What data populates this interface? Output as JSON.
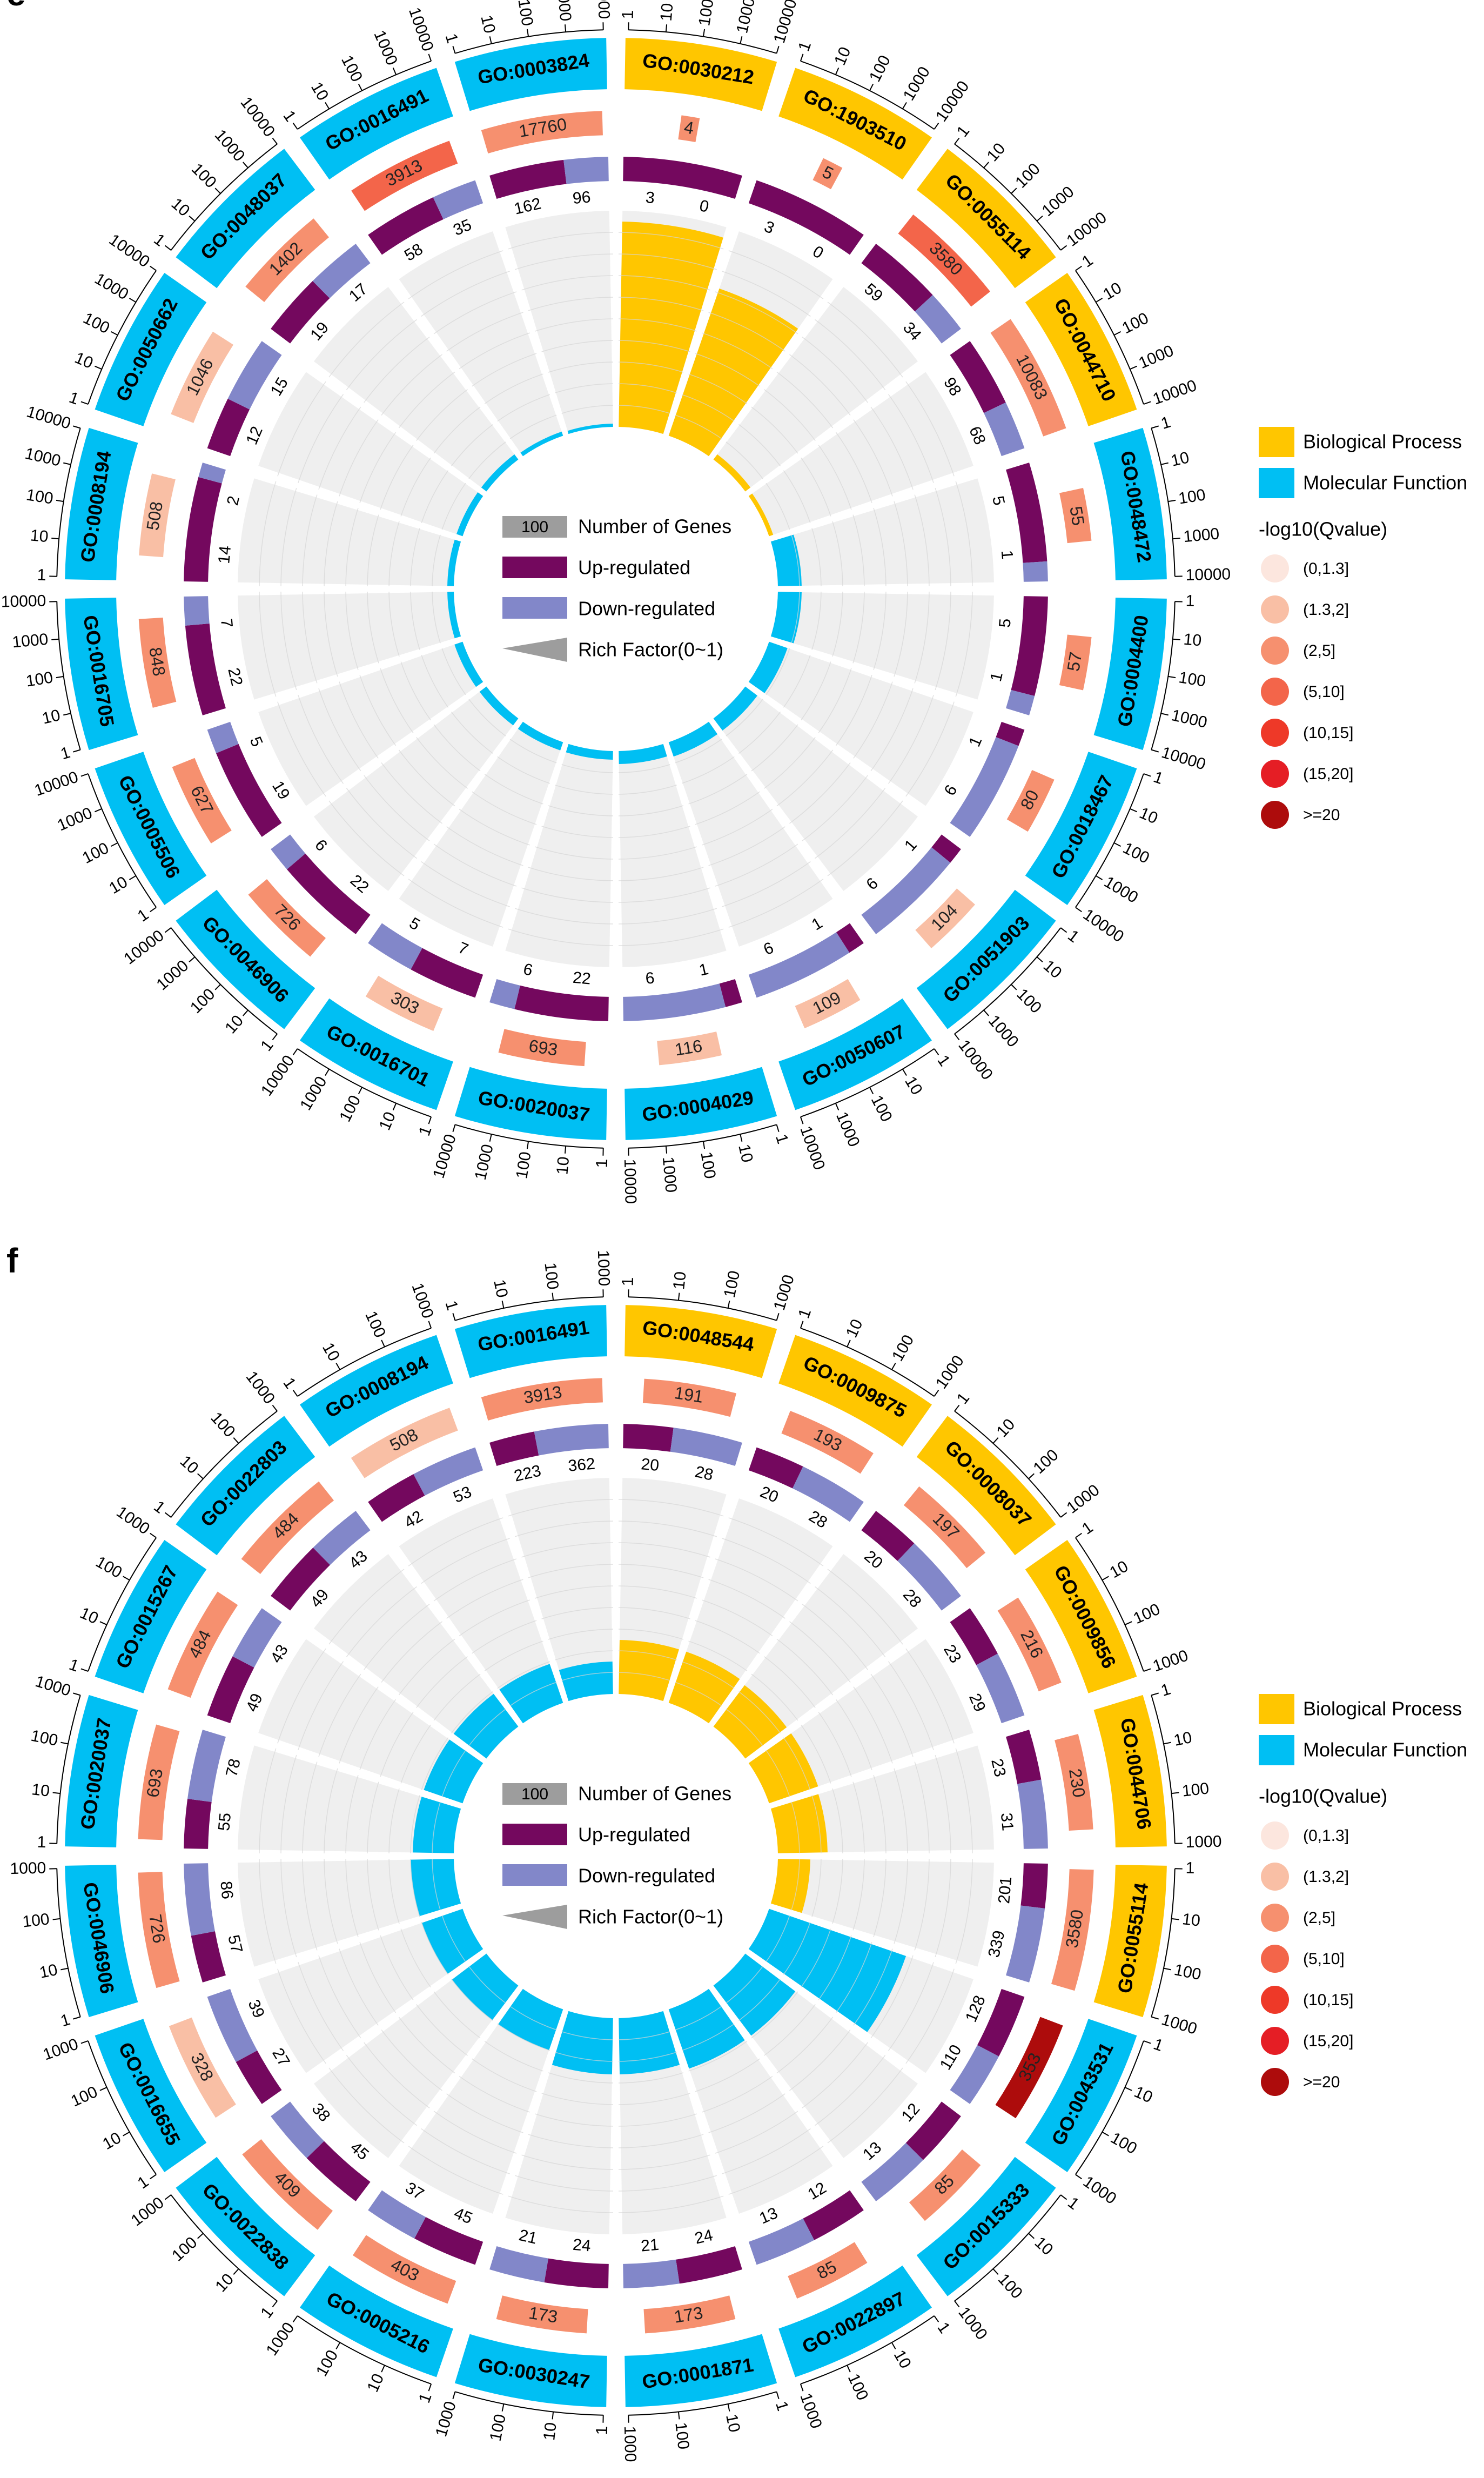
{
  "colors": {
    "bp": "#FFC600",
    "mf": "#00BFF3",
    "up": "#74085E",
    "down": "#8287C9",
    "track": "#EFEFEF",
    "grid": "#D6D6D6",
    "legend_gray": "#9D9D9D",
    "q_bins": [
      "#FCE6DE",
      "#F9BFA5",
      "#F6906F",
      "#F3654A",
      "#EE3928",
      "#E51E25",
      "#AD0C0C"
    ]
  },
  "legend": {
    "categories": [
      "Biological Process",
      "Molecular Function"
    ],
    "qvalue_title": "-log10(Qvalue)",
    "qvalue_bins": [
      "(0,1.3]",
      "(1.3,2]",
      "(2,5]",
      "(5,10]",
      "(10,15]",
      "(15,20]",
      ">=20"
    ],
    "center_items": [
      "Number of Genes",
      "Up-regulated",
      "Down-regulated",
      "Rich Factor(0~1)"
    ],
    "center_number": "100"
  },
  "chart_data": [
    {
      "type": "circular-bar",
      "panel_label": "e",
      "scale_ticks": [
        "1",
        "10",
        "100",
        "1000",
        "10000"
      ],
      "terms": [
        {
          "id": "GO:0030212",
          "category": "Biological Process",
          "total": "4",
          "q_bin": 2,
          "up": 3,
          "down": 0,
          "rich": 0.95
        },
        {
          "id": "GO:1903510",
          "category": "Biological Process",
          "total": "5",
          "q_bin": 2,
          "up": 3,
          "down": 0,
          "rich": 0.72
        },
        {
          "id": "GO:0055114",
          "category": "Biological Process",
          "total": "3580",
          "q_bin": 3,
          "up": 59,
          "down": 34,
          "rich": 0.03
        },
        {
          "id": "GO:0044710",
          "category": "Biological Process",
          "total": "10083",
          "q_bin": 2,
          "up": 98,
          "down": 68,
          "rich": 0.02
        },
        {
          "id": "GO:0048472",
          "category": "Molecular Function",
          "total": "55",
          "q_bin": 2,
          "up": 5,
          "down": 1,
          "rich": 0.11
        },
        {
          "id": "GO:0004400",
          "category": "Molecular Function",
          "total": "57",
          "q_bin": 2,
          "up": 5,
          "down": 1,
          "rich": 0.11
        },
        {
          "id": "GO:0018467",
          "category": "Molecular Function",
          "total": "80",
          "q_bin": 2,
          "up": 1,
          "down": 6,
          "rich": 0.09
        },
        {
          "id": "GO:0051903",
          "category": "Molecular Function",
          "total": "104",
          "q_bin": 1,
          "up": 1,
          "down": 6,
          "rich": 0.07
        },
        {
          "id": "GO:0050607",
          "category": "Molecular Function",
          "total": "109",
          "q_bin": 1,
          "up": 1,
          "down": 6,
          "rich": 0.07
        },
        {
          "id": "GO:0004029",
          "category": "Molecular Function",
          "total": "116",
          "q_bin": 1,
          "up": 1,
          "down": 6,
          "rich": 0.06
        },
        {
          "id": "GO:0020037",
          "category": "Molecular Function",
          "total": "693",
          "q_bin": 2,
          "up": 22,
          "down": 6,
          "rich": 0.04
        },
        {
          "id": "GO:0016701",
          "category": "Molecular Function",
          "total": "303",
          "q_bin": 1,
          "up": 7,
          "down": 5,
          "rich": 0.04
        },
        {
          "id": "GO:0046906",
          "category": "Molecular Function",
          "total": "726",
          "q_bin": 2,
          "up": 22,
          "down": 6,
          "rich": 0.04
        },
        {
          "id": "GO:0005506",
          "category": "Molecular Function",
          "total": "627",
          "q_bin": 2,
          "up": 19,
          "down": 5,
          "rich": 0.04
        },
        {
          "id": "GO:0016705",
          "category": "Molecular Function",
          "total": "848",
          "q_bin": 2,
          "up": 22,
          "down": 7,
          "rich": 0.03
        },
        {
          "id": "GO:0008194",
          "category": "Molecular Function",
          "total": "508",
          "q_bin": 1,
          "up": 14,
          "down": 2,
          "rich": 0.03
        },
        {
          "id": "GO:0050662",
          "category": "Molecular Function",
          "total": "1046",
          "q_bin": 1,
          "up": 12,
          "down": 15,
          "rich": 0.03
        },
        {
          "id": "GO:0048037",
          "category": "Molecular Function",
          "total": "1402",
          "q_bin": 2,
          "up": 19,
          "down": 17,
          "rich": 0.03
        },
        {
          "id": "GO:0016491",
          "category": "Molecular Function",
          "total": "3913",
          "q_bin": 3,
          "up": 58,
          "down": 35,
          "rich": 0.02
        },
        {
          "id": "GO:0003824",
          "category": "Molecular Function",
          "total": "17760",
          "q_bin": 2,
          "up": 162,
          "down": 96,
          "rich": 0.015
        }
      ]
    },
    {
      "type": "circular-bar",
      "panel_label": "f",
      "scale_ticks": [
        "1",
        "10",
        "100",
        "1000"
      ],
      "terms": [
        {
          "id": "GO:0048544",
          "category": "Biological Process",
          "total": "191",
          "q_bin": 2,
          "up": 20,
          "down": 28,
          "rich": 0.25
        },
        {
          "id": "GO:0009875",
          "category": "Biological Process",
          "total": "193",
          "q_bin": 2,
          "up": 20,
          "down": 28,
          "rich": 0.25
        },
        {
          "id": "GO:0008037",
          "category": "Biological Process",
          "total": "197",
          "q_bin": 2,
          "up": 20,
          "down": 28,
          "rich": 0.24
        },
        {
          "id": "GO:0009856",
          "category": "Biological Process",
          "total": "216",
          "q_bin": 2,
          "up": 23,
          "down": 29,
          "rich": 0.24
        },
        {
          "id": "GO:0044706",
          "category": "Biological Process",
          "total": "230",
          "q_bin": 2,
          "up": 23,
          "down": 31,
          "rich": 0.23
        },
        {
          "id": "GO:0055114",
          "category": "Biological Process",
          "total": "3580",
          "q_bin": 2,
          "up": 201,
          "down": 339,
          "rich": 0.15
        },
        {
          "id": "GO:0043531",
          "category": "Molecular Function",
          "total": "353",
          "q_bin": 6,
          "up": 128,
          "down": 110,
          "rich": 0.67
        },
        {
          "id": "GO:0015333",
          "category": "Molecular Function",
          "total": "85",
          "q_bin": 2,
          "up": 12,
          "down": 13,
          "rich": 0.29
        },
        {
          "id": "GO:0022897",
          "category": "Molecular Function",
          "total": "85",
          "q_bin": 2,
          "up": 12,
          "down": 13,
          "rich": 0.29
        },
        {
          "id": "GO:0001871",
          "category": "Molecular Function",
          "total": "173",
          "q_bin": 2,
          "up": 24,
          "down": 21,
          "rich": 0.26
        },
        {
          "id": "GO:0030247",
          "category": "Molecular Function",
          "total": "173",
          "q_bin": 2,
          "up": 24,
          "down": 21,
          "rich": 0.26
        },
        {
          "id": "GO:0005216",
          "category": "Molecular Function",
          "total": "403",
          "q_bin": 2,
          "up": 45,
          "down": 37,
          "rich": 0.2
        },
        {
          "id": "GO:0022838",
          "category": "Molecular Function",
          "total": "409",
          "q_bin": 2,
          "up": 45,
          "down": 38,
          "rich": 0.2
        },
        {
          "id": "GO:0016655",
          "category": "Molecular Function",
          "total": "328",
          "q_bin": 1,
          "up": 27,
          "down": 39,
          "rich": 0.2
        },
        {
          "id": "GO:0046906",
          "category": "Molecular Function",
          "total": "726",
          "q_bin": 2,
          "up": 57,
          "down": 86,
          "rich": 0.2
        },
        {
          "id": "GO:0020037",
          "category": "Molecular Function",
          "total": "693",
          "q_bin": 2,
          "up": 55,
          "down": 78,
          "rich": 0.19
        },
        {
          "id": "GO:0015267",
          "category": "Molecular Function",
          "total": "484",
          "q_bin": 2,
          "up": 49,
          "down": 43,
          "rich": 0.19
        },
        {
          "id": "GO:0022803",
          "category": "Molecular Function",
          "total": "484",
          "q_bin": 2,
          "up": 49,
          "down": 43,
          "rich": 0.19
        },
        {
          "id": "GO:0008194",
          "category": "Molecular Function",
          "total": "508",
          "q_bin": 1,
          "up": 42,
          "down": 53,
          "rich": 0.19
        },
        {
          "id": "GO:0016491",
          "category": "Molecular Function",
          "total": "3913",
          "q_bin": 2,
          "up": 223,
          "down": 362,
          "rich": 0.15
        }
      ]
    }
  ]
}
